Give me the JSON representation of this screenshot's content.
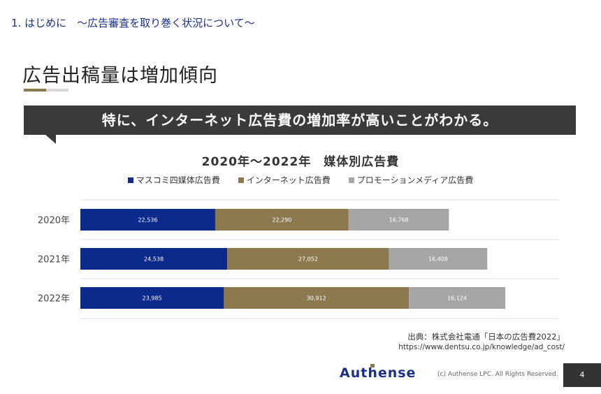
{
  "header": {
    "section": "1. はじめに　～広告審査を取り巻く状況について～",
    "title": "広告出稿量は増加傾向",
    "banner": "特に、インターネット広告費の増加率が高いことがわかる。"
  },
  "chart_data": {
    "type": "bar",
    "orientation": "horizontal",
    "stacked": true,
    "title": "2020年～2022年　媒体別広告費",
    "categories": [
      "2020年",
      "2021年",
      "2022年"
    ],
    "series": [
      {
        "name": "マスコミ四媒体広告費",
        "color": "#0b2a8c",
        "values": [
          22536,
          24538,
          23985
        ],
        "labels": [
          "22,536",
          "24,538",
          "23,985"
        ]
      },
      {
        "name": "インターネット広告費",
        "color": "#8c7a4e",
        "values": [
          22290,
          27052,
          30912
        ],
        "labels": [
          "22,290",
          "27,052",
          "30,912"
        ]
      },
      {
        "name": "プロモーションメディア広告費",
        "color": "#a6a6a6",
        "values": [
          16768,
          16408,
          16124
        ],
        "labels": [
          "16,768",
          "16,408",
          "16,124"
        ]
      }
    ],
    "xlim": [
      0,
      80000
    ],
    "grid": true,
    "legend_position": "top"
  },
  "footer": {
    "source_line1": "出典：株式会社電通「日本の広告費2022」",
    "source_line2": "https://www.dentsu.co.jp/knowledge/ad_cost/",
    "logo": "Authense",
    "copyright": "(c) Authense LPC. All Rights Reserved.",
    "page_number": "4"
  }
}
